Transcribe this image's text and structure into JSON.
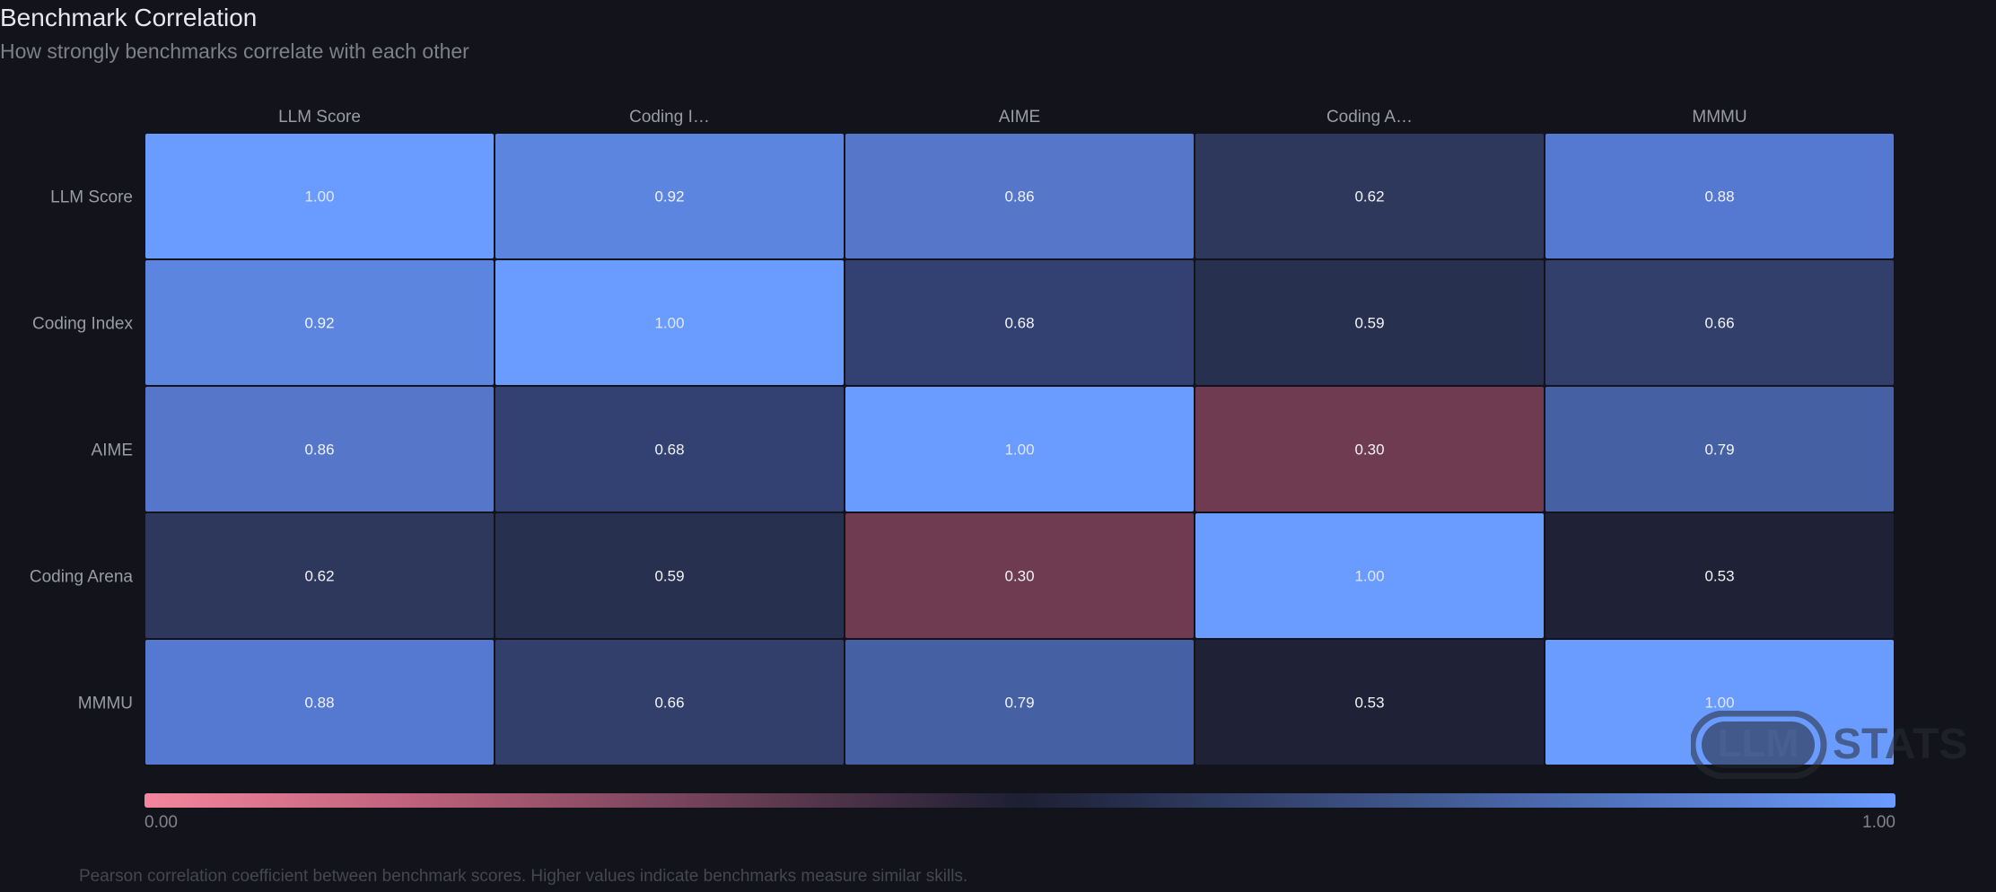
{
  "header": {
    "title": "Benchmark Correlation",
    "subtitle": "How strongly benchmarks correlate with each other"
  },
  "chart_data": {
    "type": "heatmap",
    "title": "Benchmark Correlation",
    "subtitle": "How strongly benchmarks correlate with each other",
    "x_labels": [
      "LLM Score",
      "Coding I…",
      "AIME",
      "Coding A…",
      "MMMU"
    ],
    "y_labels": [
      "LLM Score",
      "Coding Index",
      "AIME",
      "Coding Arena",
      "MMMU"
    ],
    "values": [
      [
        1.0,
        0.92,
        0.86,
        0.62,
        0.88
      ],
      [
        0.92,
        1.0,
        0.68,
        0.59,
        0.66
      ],
      [
        0.86,
        0.68,
        1.0,
        0.3,
        0.79
      ],
      [
        0.62,
        0.59,
        0.3,
        1.0,
        0.53
      ],
      [
        0.88,
        0.66,
        0.79,
        0.53,
        1.0
      ]
    ],
    "value_labels": [
      [
        "1.00",
        "0.92",
        "0.86",
        "0.62",
        "0.88"
      ],
      [
        "0.92",
        "1.00",
        "0.68",
        "0.59",
        "0.66"
      ],
      [
        "0.86",
        "0.68",
        "1.00",
        "0.30",
        "0.79"
      ],
      [
        "0.62",
        "0.59",
        "0.30",
        "1.00",
        "0.53"
      ],
      [
        "0.88",
        "0.66",
        "0.79",
        "0.53",
        "1.00"
      ]
    ],
    "color_scale": {
      "min": 0.0,
      "max": 1.0,
      "min_label": "0.00",
      "max_label": "1.00",
      "stops": [
        {
          "value": 0.0,
          "color": "#f4869d"
        },
        {
          "value": 0.15,
          "color": "#bf627c"
        },
        {
          "value": 0.5,
          "color": "#1d1f33"
        },
        {
          "value": 1.0,
          "color": "#6a9bfe"
        }
      ]
    },
    "colors": {
      "cells": [
        [
          "#6a9bfe",
          "#5b85df",
          "#5576c9",
          "#2e385c",
          "#5579d0"
        ],
        [
          "#5b85df",
          "#6a9bfe",
          "#324171",
          "#283050",
          "#323f6b"
        ],
        [
          "#5576c9",
          "#324171",
          "#6a9bfe",
          "#6e3b51",
          "#4561a4"
        ],
        [
          "#2e385c",
          "#283050",
          "#6e3b51",
          "#6a9bfe",
          "#1f2136"
        ],
        [
          "#5579d0",
          "#323f6b",
          "#4561a4",
          "#1f2136",
          "#6a9bfe"
        ]
      ]
    }
  },
  "footnote": "Pearson correlation coefficient between benchmark scores. Higher values indicate benchmarks measure similar skills.",
  "watermark": {
    "badge": "LLM",
    "word": "STATS"
  },
  "colors": {
    "background": "#13141b",
    "title": "#e6e7ec",
    "subtitle": "#7d7f89",
    "axis_label": "#9a9ca5",
    "cell_text": "#f2f3f7",
    "cell_text_bright": "#dfe7ff",
    "footnote": "#45474f"
  }
}
